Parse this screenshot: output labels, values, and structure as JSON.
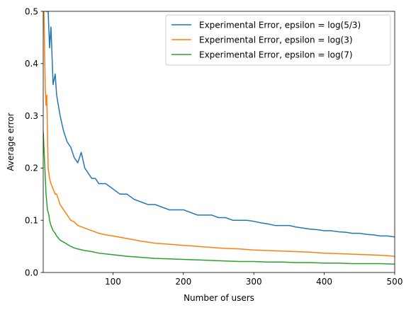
{
  "chart_data": {
    "type": "line",
    "title": "",
    "xlabel": "Number of users",
    "ylabel": "Average error",
    "xlim": [
      1,
      500
    ],
    "ylim": [
      0,
      0.5
    ],
    "x_ticks": [
      100,
      200,
      300,
      400,
      500
    ],
    "y_ticks": [
      0.0,
      0.1,
      0.2,
      0.3,
      0.4,
      0.5
    ],
    "x_tick_labels": [
      "100",
      "200",
      "300",
      "400",
      "500"
    ],
    "y_tick_labels": [
      "0.0",
      "0.1",
      "0.2",
      "0.3",
      "0.4",
      "0.5"
    ],
    "grid": false,
    "legend_position": "top-right",
    "series": [
      {
        "name": "Experimental Error, epsilon = log(5/3)",
        "color": "#1f77b4",
        "x": [
          2,
          5,
          8,
          10,
          12,
          15,
          18,
          20,
          25,
          30,
          35,
          40,
          45,
          50,
          55,
          60,
          65,
          70,
          75,
          80,
          90,
          100,
          110,
          120,
          130,
          140,
          150,
          160,
          170,
          180,
          190,
          200,
          210,
          220,
          230,
          240,
          250,
          260,
          270,
          280,
          290,
          300,
          310,
          320,
          330,
          340,
          350,
          360,
          370,
          380,
          390,
          400,
          410,
          420,
          430,
          440,
          450,
          460,
          470,
          480,
          490,
          500
        ],
        "y": [
          0.62,
          0.5,
          0.5,
          0.43,
          0.47,
          0.36,
          0.38,
          0.34,
          0.3,
          0.27,
          0.25,
          0.24,
          0.22,
          0.21,
          0.23,
          0.2,
          0.19,
          0.18,
          0.18,
          0.17,
          0.17,
          0.16,
          0.15,
          0.15,
          0.14,
          0.135,
          0.13,
          0.13,
          0.125,
          0.12,
          0.12,
          0.12,
          0.115,
          0.11,
          0.11,
          0.11,
          0.105,
          0.105,
          0.1,
          0.1,
          0.1,
          0.098,
          0.095,
          0.093,
          0.09,
          0.09,
          0.09,
          0.087,
          0.085,
          0.083,
          0.082,
          0.08,
          0.08,
          0.078,
          0.077,
          0.075,
          0.075,
          0.073,
          0.072,
          0.07,
          0.07,
          0.068
        ]
      },
      {
        "name": "Experimental Error, epsilon = log(3)",
        "color": "#ff7f0e",
        "x": [
          2,
          3,
          4,
          5,
          6,
          8,
          10,
          12,
          15,
          18,
          20,
          25,
          30,
          35,
          40,
          45,
          50,
          60,
          70,
          80,
          90,
          100,
          120,
          140,
          160,
          180,
          200,
          220,
          240,
          260,
          280,
          300,
          320,
          340,
          360,
          380,
          400,
          420,
          440,
          460,
          480,
          500
        ],
        "y": [
          0.5,
          0.42,
          0.35,
          0.32,
          0.34,
          0.2,
          0.18,
          0.17,
          0.16,
          0.15,
          0.15,
          0.13,
          0.12,
          0.11,
          0.1,
          0.097,
          0.09,
          0.085,
          0.08,
          0.075,
          0.072,
          0.07,
          0.065,
          0.06,
          0.056,
          0.054,
          0.052,
          0.05,
          0.048,
          0.046,
          0.045,
          0.043,
          0.042,
          0.041,
          0.04,
          0.039,
          0.037,
          0.036,
          0.035,
          0.034,
          0.033,
          0.031
        ]
      },
      {
        "name": "Experimental Error, epsilon = log(7)",
        "color": "#2ca02c",
        "x": [
          1,
          2,
          3,
          4,
          5,
          7,
          9,
          10,
          12,
          15,
          18,
          20,
          25,
          30,
          35,
          40,
          45,
          50,
          60,
          70,
          80,
          100,
          120,
          140,
          160,
          180,
          200,
          220,
          240,
          260,
          280,
          300,
          320,
          340,
          360,
          380,
          400,
          420,
          440,
          460,
          480,
          500
        ],
        "y": [
          0.27,
          0.24,
          0.21,
          0.18,
          0.15,
          0.12,
          0.11,
          0.1,
          0.09,
          0.08,
          0.075,
          0.07,
          0.062,
          0.058,
          0.054,
          0.05,
          0.047,
          0.045,
          0.042,
          0.04,
          0.037,
          0.034,
          0.031,
          0.029,
          0.027,
          0.026,
          0.025,
          0.024,
          0.023,
          0.022,
          0.021,
          0.021,
          0.02,
          0.02,
          0.019,
          0.019,
          0.018,
          0.018,
          0.017,
          0.017,
          0.017,
          0.016
        ]
      }
    ]
  }
}
